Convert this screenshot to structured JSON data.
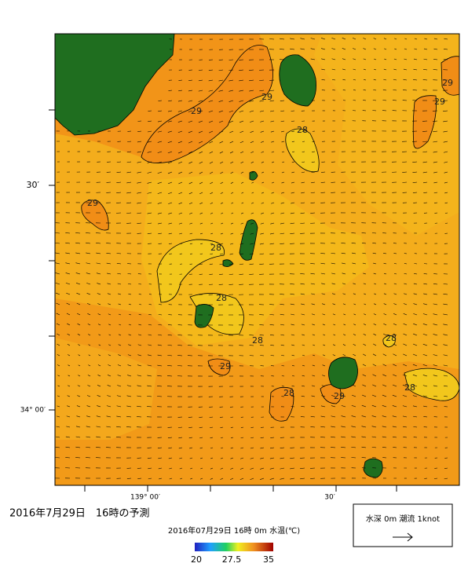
{
  "map": {
    "axis_labels": {
      "lat_30": "30′",
      "lat_34": "34° 00′",
      "lon_139": "139° 00′",
      "lon_30": "30′"
    },
    "contour_labels": [
      "29",
      "29",
      "28",
      "29",
      "29",
      "29",
      "28",
      "28",
      "28",
      "28",
      "29",
      "28",
      "29",
      "28"
    ]
  },
  "footer": {
    "title": "2016年7月29日　16時の予測",
    "caption": "2016年07月29日 16時 0m 水温(℃)",
    "colorbar_ticks": [
      "20",
      "27.5",
      "35"
    ],
    "legend": "水深 0m 潮流 1knot"
  }
}
